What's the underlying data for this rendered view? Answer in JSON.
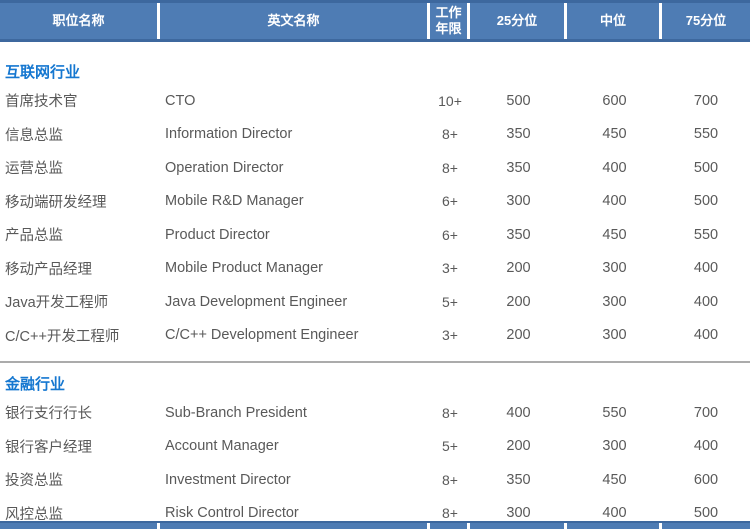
{
  "header": {
    "columns": [
      "职位名称",
      "英文名称",
      "工作年限",
      "25分位",
      "中位",
      "75分位"
    ]
  },
  "colors": {
    "header_bg": "#4E7CB4",
    "header_border": "#3D689E",
    "section_title": "#1577D0",
    "body_text": "#595959",
    "divider": "#ABABAB"
  },
  "sections": [
    {
      "title": "互联网行业",
      "rows": [
        {
          "name": "首席技术官",
          "en": "CTO",
          "years": "10+",
          "p25": "500",
          "p50": "600",
          "p75": "700"
        },
        {
          "name": "信息总监",
          "en": "Information Director",
          "years": "8+",
          "p25": "350",
          "p50": "450",
          "p75": "550"
        },
        {
          "name": "运营总监",
          "en": "Operation Director",
          "years": "8+",
          "p25": "350",
          "p50": "400",
          "p75": "500"
        },
        {
          "name": "移动端研发经理",
          "en": "Mobile R&D Manager",
          "years": "6+",
          "p25": "300",
          "p50": "400",
          "p75": "500"
        },
        {
          "name": "产品总监",
          "en": "Product Director",
          "years": "6+",
          "p25": "350",
          "p50": "450",
          "p75": "550"
        },
        {
          "name": "移动产品经理",
          "en": "Mobile Product Manager",
          "years": "3+",
          "p25": "200",
          "p50": "300",
          "p75": "400"
        },
        {
          "name": "Java开发工程师",
          "en": "Java Development Engineer",
          "years": "5+",
          "p25": "200",
          "p50": "300",
          "p75": "400"
        },
        {
          "name": "C/C++开发工程师",
          "en": "C/C++ Development Engineer",
          "years": "3+",
          "p25": "200",
          "p50": "300",
          "p75": "400"
        }
      ]
    },
    {
      "title": "金融行业",
      "rows": [
        {
          "name": "银行支行行长",
          "en": "Sub-Branch President",
          "years": "8+",
          "p25": "400",
          "p50": "550",
          "p75": "700"
        },
        {
          "name": "银行客户经理",
          "en": "Account Manager",
          "years": "5+",
          "p25": "200",
          "p50": "300",
          "p75": "400"
        },
        {
          "name": "投资总监",
          "en": "Investment Director",
          "years": "8+",
          "p25": "350",
          "p50": "450",
          "p75": "600"
        },
        {
          "name": "风控总监",
          "en": "Risk Control Director",
          "years": "8+",
          "p25": "300",
          "p50": "400",
          "p75": "500"
        }
      ]
    }
  ]
}
